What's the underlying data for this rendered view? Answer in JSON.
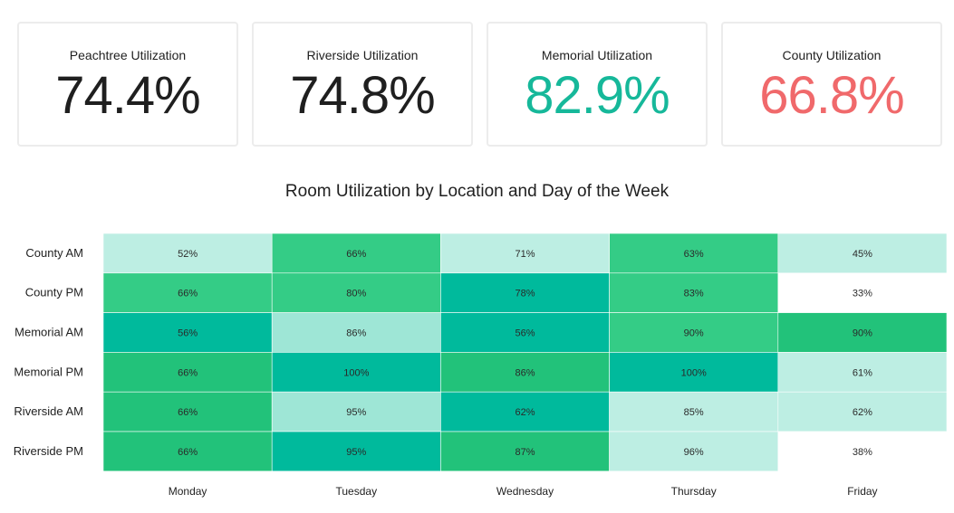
{
  "kpis": [
    {
      "title": "Peachtree Utilization",
      "value": "74.4%",
      "color": "#1f1f1f"
    },
    {
      "title": "Riverside Utilization",
      "value": "74.8%",
      "color": "#1f1f1f"
    },
    {
      "title": "Memorial Utilization",
      "value": "82.9%",
      "color": "#16b89a"
    },
    {
      "title": "County Utilization",
      "value": "66.8%",
      "color": "#f0696b"
    }
  ],
  "chart_data": {
    "type": "heatmap",
    "title": "Room Utilization by Location and Day of the Week",
    "rows": [
      "County AM",
      "County PM",
      "Memorial AM",
      "Memorial PM",
      "Riverside AM",
      "Riverside PM"
    ],
    "columns": [
      "Monday",
      "Tuesday",
      "Wednesday",
      "Thursday",
      "Friday"
    ],
    "values": [
      [
        52,
        66,
        71,
        63,
        45
      ],
      [
        66,
        80,
        78,
        83,
        33
      ],
      [
        56,
        86,
        56,
        90,
        90
      ],
      [
        66,
        100,
        86,
        100,
        61
      ],
      [
        66,
        95,
        62,
        85,
        62
      ],
      [
        66,
        95,
        87,
        96,
        38
      ]
    ],
    "labels": [
      [
        "52%",
        "66%",
        "71%",
        "63%",
        "45%"
      ],
      [
        "66%",
        "80%",
        "78%",
        "83%",
        "33%"
      ],
      [
        "56%",
        "86%",
        "56%",
        "90%",
        "90%"
      ],
      [
        "66%",
        "100%",
        "86%",
        "100%",
        "61%"
      ],
      [
        "66%",
        "95%",
        "62%",
        "85%",
        "62%"
      ],
      [
        "66%",
        "95%",
        "87%",
        "96%",
        "38%"
      ]
    ],
    "cell_colors": [
      [
        "#bdeee3",
        "#34cc86",
        "#bdeee3",
        "#34cc86",
        "#bdeee3"
      ],
      [
        "#34cc86",
        "#34cc86",
        "#00ba9c",
        "#34cc86",
        "#ffffff"
      ],
      [
        "#00ba9c",
        "#9ee6d6",
        "#00ba9c",
        "#34cc86",
        "#22c27a"
      ],
      [
        "#22c27a",
        "#00ba9c",
        "#22c27a",
        "#00ba9c",
        "#bdeee3"
      ],
      [
        "#22c27a",
        "#9ee6d6",
        "#00ba9c",
        "#bdeee3",
        "#bdeee3"
      ],
      [
        "#22c27a",
        "#00ba9c",
        "#22c27a",
        "#bdeee3",
        "#ffffff"
      ]
    ]
  }
}
